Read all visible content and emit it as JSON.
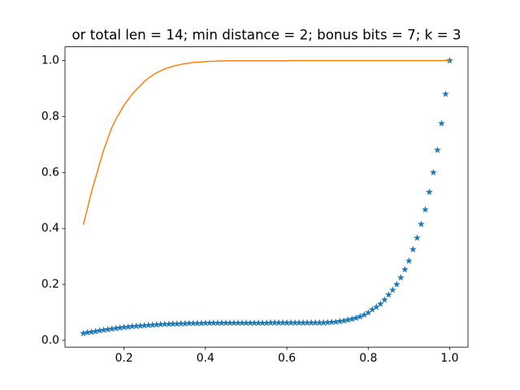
{
  "chart_data": {
    "type": "line",
    "title": "or total len = 14; min distance = 2; bonus bits = 7; k = 3",
    "x": [
      0.1,
      0.11,
      0.12,
      0.13,
      0.14,
      0.15,
      0.16,
      0.17,
      0.18,
      0.19,
      0.2,
      0.21,
      0.22,
      0.23,
      0.24,
      0.25,
      0.26,
      0.27,
      0.28,
      0.29,
      0.3,
      0.31,
      0.32,
      0.33,
      0.34,
      0.35,
      0.36,
      0.37,
      0.38,
      0.39,
      0.4,
      0.41,
      0.42,
      0.43,
      0.44,
      0.45,
      0.46,
      0.47,
      0.48,
      0.49,
      0.5,
      0.51,
      0.52,
      0.53,
      0.54,
      0.55,
      0.56,
      0.57,
      0.58,
      0.59,
      0.6,
      0.61,
      0.62,
      0.63,
      0.64,
      0.65,
      0.66,
      0.67,
      0.68,
      0.69,
      0.7,
      0.71,
      0.72,
      0.73,
      0.74,
      0.75,
      0.76,
      0.77,
      0.78,
      0.79,
      0.8,
      0.81,
      0.82,
      0.83,
      0.84,
      0.85,
      0.86,
      0.87,
      0.88,
      0.89,
      0.9,
      0.91,
      0.92,
      0.93,
      0.94,
      0.95,
      0.96,
      0.97,
      0.98,
      0.99,
      1.0
    ],
    "series": [
      {
        "color": "#1f77b4",
        "style": "star",
        "values": [
          0.025,
          0.028,
          0.03,
          0.032,
          0.035,
          0.037,
          0.039,
          0.041,
          0.043,
          0.045,
          0.047,
          0.048,
          0.05,
          0.051,
          0.052,
          0.053,
          0.054,
          0.055,
          0.056,
          0.057,
          0.058,
          0.058,
          0.059,
          0.059,
          0.06,
          0.06,
          0.061,
          0.061,
          0.061,
          0.061,
          0.062,
          0.062,
          0.062,
          0.062,
          0.062,
          0.062,
          0.062,
          0.062,
          0.062,
          0.062,
          0.062,
          0.062,
          0.062,
          0.062,
          0.062,
          0.062,
          0.063,
          0.063,
          0.063,
          0.063,
          0.063,
          0.063,
          0.063,
          0.063,
          0.063,
          0.063,
          0.063,
          0.063,
          0.063,
          0.063,
          0.064,
          0.065,
          0.066,
          0.068,
          0.07,
          0.073,
          0.076,
          0.08,
          0.085,
          0.091,
          0.099,
          0.11,
          0.119,
          0.13,
          0.145,
          0.163,
          0.18,
          0.2,
          0.224,
          0.253,
          0.284,
          0.325,
          0.366,
          0.415,
          0.467,
          0.53,
          0.6,
          0.68,
          0.775,
          0.88,
          1.0
        ]
      },
      {
        "color": "#ff7f0e",
        "style": "line",
        "values": [
          0.413,
          0.47,
          0.53,
          0.58,
          0.63,
          0.68,
          0.72,
          0.76,
          0.79,
          0.815,
          0.84,
          0.86,
          0.88,
          0.895,
          0.91,
          0.925,
          0.937,
          0.947,
          0.956,
          0.963,
          0.97,
          0.975,
          0.979,
          0.983,
          0.986,
          0.989,
          0.991,
          0.993,
          0.994,
          0.995,
          0.996,
          0.997,
          0.997,
          0.998,
          0.998,
          0.999,
          0.999,
          0.999,
          0.999,
          0.999,
          0.999,
          0.999,
          0.999,
          0.999,
          0.999,
          0.999,
          0.999,
          0.999,
          0.999,
          0.999,
          0.999,
          1.0,
          1.0,
          1.0,
          1.0,
          1.0,
          1.0,
          1.0,
          1.0,
          1.0,
          1.0,
          1.0,
          1.0,
          1.0,
          1.0,
          1.0,
          1.0,
          1.0,
          1.0,
          1.0,
          1.0,
          1.0,
          1.0,
          1.0,
          1.0,
          1.0,
          1.0,
          1.0,
          1.0,
          1.0,
          1.0,
          1.0,
          1.0,
          1.0,
          1.0,
          1.0,
          1.0,
          1.0,
          1.0,
          1.0,
          1.0
        ]
      }
    ],
    "xlim": [
      0.055,
      1.045
    ],
    "xticks": [
      0.2,
      0.4,
      0.6,
      0.8,
      {
        "value": 1.0,
        "label": "1.0"
      }
    ],
    "ylim": [
      -0.024,
      1.049
    ],
    "yticks": [
      {
        "value": 0.0,
        "label": "0.0"
      },
      0.2,
      0.4,
      0.6,
      0.8,
      {
        "value": 1.0,
        "label": "1.0"
      }
    ]
  }
}
